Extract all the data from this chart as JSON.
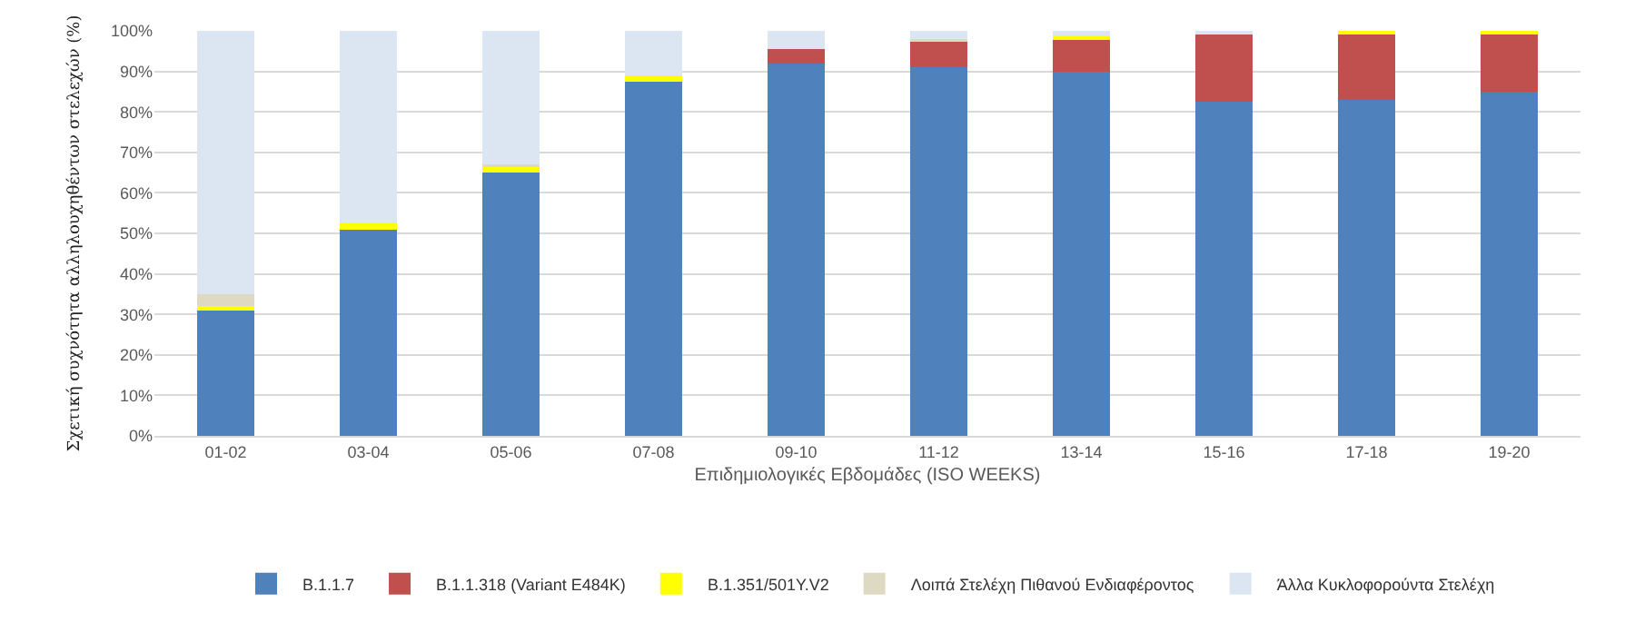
{
  "chart_data": {
    "type": "bar",
    "stacked": true,
    "xlabel": "Επιδημιολογικές Εβδομάδες (ISO WEEKS)",
    "ylabel": "Σχετική συχνότητα αλληλουχηθέντων στελεχών (%)",
    "categories": [
      "01-02",
      "03-04",
      "05-06",
      "07-08",
      "09-10",
      "11-12",
      "13-14",
      "15-16",
      "17-18",
      "19-20"
    ],
    "series": [
      {
        "name": "B.1.1.7",
        "color": "#4f81bd",
        "values": [
          31,
          51,
          65,
          87.5,
          92,
          91,
          90,
          82.5,
          83,
          85
        ]
      },
      {
        "name": "B.1.1.318 (Variant E484K)",
        "color": "#c0504d",
        "values": [
          0,
          0,
          0,
          0,
          3.5,
          6.5,
          8,
          16.5,
          16,
          14
        ]
      },
      {
        "name": "B.1.351/501Y.V2",
        "color": "#ffff00",
        "values": [
          1,
          1.5,
          1.5,
          1.5,
          0,
          0,
          0.8,
          0,
          1,
          1
        ]
      },
      {
        "name": "Λοιπά Στελέχη Πιθανού Ενδιαφέροντος",
        "color": "#ddd9c3",
        "values": [
          3,
          null,
          0.5,
          0,
          0,
          0.5,
          null,
          0,
          0,
          0
        ]
      },
      {
        "name": "Άλλα Κυκλοφορούντα Στελέχη",
        "color": "#dce6f2",
        "values": [
          65,
          47.5,
          33,
          11,
          4.5,
          2,
          1.2,
          1,
          null,
          null
        ]
      }
    ],
    "ylim": [
      0,
      100
    ],
    "yticks": [
      {
        "value": 0,
        "label": "0%"
      },
      {
        "value": 10,
        "label": "10%"
      },
      {
        "value": 20,
        "label": "20%"
      },
      {
        "value": 30,
        "label": "30%"
      },
      {
        "value": 40,
        "label": "40%"
      },
      {
        "value": 50,
        "label": "50%"
      },
      {
        "value": 60,
        "label": "60%"
      },
      {
        "value": 70,
        "label": "70%"
      },
      {
        "value": 80,
        "label": "80%"
      },
      {
        "value": 90,
        "label": "90%"
      },
      {
        "value": 100,
        "label": "100%"
      }
    ],
    "grid": "y",
    "legend": "bottom"
  }
}
